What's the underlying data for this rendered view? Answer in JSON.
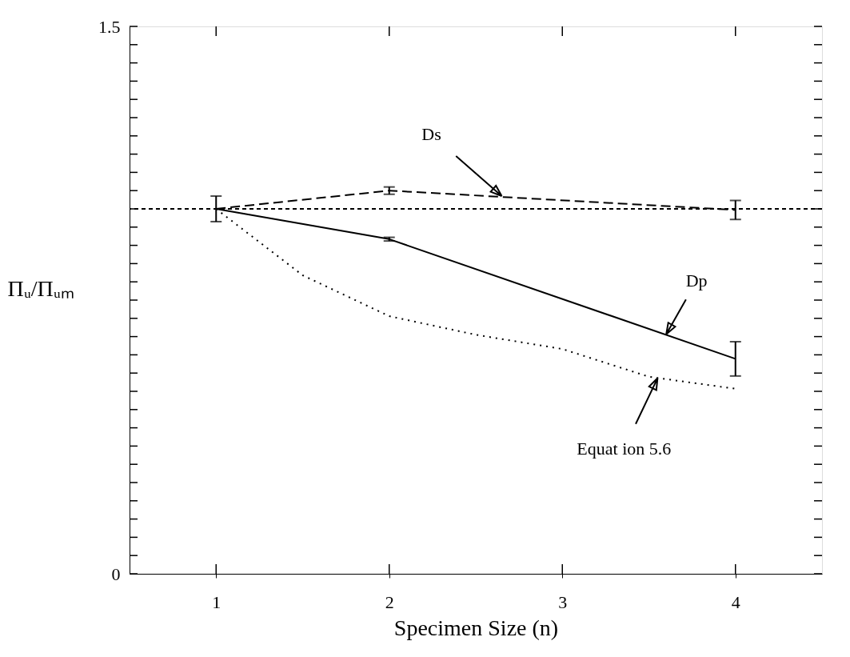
{
  "chart_data": {
    "type": "line",
    "xlabel": "Specimen Size (n)",
    "ylabel": "Πᵤ/Πᵤₘ",
    "x": [
      1,
      2,
      3,
      4
    ],
    "series": [
      {
        "color": "#000000",
        "line_style": "dashed",
        "values": [
          1.0,
          1.05,
          null,
          0.997
        ],
        "errors": [
          0.035,
          0.01,
          null,
          0.026
        ]
      },
      {
        "color": "#000000",
        "line_style": "solid",
        "values": [
          1.0,
          0.917,
          null,
          0.589
        ],
        "errors": [
          null,
          0.005,
          null,
          0.047
        ]
      },
      {
        "color": "#000000",
        "line_style": "dotted",
        "x": [
          1,
          1.5,
          2,
          2.5,
          3,
          3.5,
          4
        ],
        "values": [
          1.0,
          0.818,
          0.706,
          0.655,
          0.616,
          0.54,
          0.507
        ]
      }
    ],
    "xlim": [
      0.5,
      4.5
    ],
    "xticks": [
      1,
      2,
      3,
      4
    ],
    "ylim": [
      0,
      1.5
    ],
    "yticks": [
      0,
      {
        "value": 0.05,
        "label": null
      },
      {
        "value": 0.1,
        "label": null
      },
      {
        "value": 0.15,
        "label": null
      },
      {
        "value": 0.2,
        "label": null
      },
      {
        "value": 0.25,
        "label": null
      },
      {
        "value": 0.3,
        "label": null
      },
      {
        "value": 0.35,
        "label": null
      },
      {
        "value": 0.4,
        "label": null
      },
      {
        "value": 0.45,
        "label": null
      },
      {
        "value": 0.5,
        "label": null
      },
      {
        "value": 0.55,
        "label": null
      },
      {
        "value": 0.6,
        "label": null
      },
      {
        "value": 0.65,
        "label": null
      },
      {
        "value": 0.7,
        "label": null
      },
      {
        "value": 0.75,
        "label": null
      },
      {
        "value": 0.8,
        "label": null
      },
      {
        "value": 0.85,
        "label": null
      },
      {
        "value": 0.9,
        "label": null
      },
      {
        "value": 0.95,
        "label": null
      },
      {
        "value": 1.0,
        "label": null
      },
      {
        "value": 1.05,
        "label": null
      },
      {
        "value": 1.1,
        "label": null
      },
      {
        "value": 1.15,
        "label": null
      },
      {
        "value": 1.2,
        "label": null
      },
      {
        "value": 1.25,
        "label": null
      },
      {
        "value": 1.3,
        "label": null
      },
      {
        "value": 1.35,
        "label": null
      },
      {
        "value": 1.4,
        "label": null
      },
      {
        "value": 1.45,
        "label": null
      },
      1.5
    ],
    "ref_lines": [
      {
        "axis": "y",
        "value": 1.0,
        "line_style": "dashed"
      }
    ],
    "annotations": [
      {
        "text": "Ds",
        "x": 2.65,
        "y": 1.035
      },
      {
        "text": "Dp",
        "x": 3.6,
        "y": 0.656
      },
      {
        "text": "Equat ion 5.6",
        "x": 3.55,
        "y": 0.536
      }
    ],
    "grid": false
  }
}
